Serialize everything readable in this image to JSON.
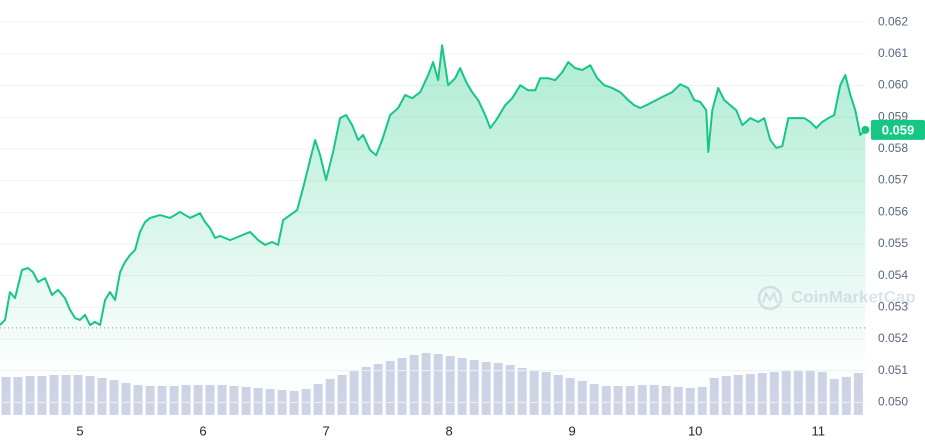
{
  "chart_data": [
    {
      "type": "line",
      "color": "#16c784",
      "grid": true,
      "watermark": "CoinMarketCap",
      "baseline": 0.05235,
      "last_value_label": "0.059",
      "xlim": [
        4.35,
        11.38
      ],
      "xticks": [
        5,
        6,
        7,
        8,
        9,
        10,
        11
      ],
      "ylim": [
        0.0496,
        0.0627
      ],
      "yticks": [
        {
          "value": 0.05,
          "label": "0.050"
        },
        0.051,
        0.052,
        0.053,
        0.054,
        0.055,
        0.056,
        0.057,
        0.058,
        0.059,
        {
          "value": 0.06,
          "label": "0.060"
        },
        0.061,
        0.062
      ],
      "x": [
        4.35,
        4.391,
        4.431,
        4.472,
        4.529,
        4.578,
        4.618,
        4.659,
        4.716,
        4.773,
        4.822,
        4.878,
        4.919,
        4.96,
        5.0,
        5.041,
        5.082,
        5.122,
        5.163,
        5.204,
        5.244,
        5.285,
        5.326,
        5.366,
        5.407,
        5.448,
        5.488,
        5.529,
        5.57,
        5.651,
        5.732,
        5.813,
        5.895,
        5.976,
        6.017,
        6.057,
        6.098,
        6.139,
        6.22,
        6.301,
        6.383,
        6.448,
        6.504,
        6.561,
        6.61,
        6.651,
        6.708,
        6.765,
        6.813,
        6.87,
        6.911,
        6.952,
        7.0,
        7.057,
        7.114,
        7.163,
        7.212,
        7.261,
        7.301,
        7.358,
        7.407,
        7.456,
        7.521,
        7.586,
        7.643,
        7.7,
        7.765,
        7.83,
        7.87,
        7.911,
        7.943,
        7.992,
        8.049,
        8.09,
        8.139,
        8.187,
        8.236,
        8.293,
        8.334,
        8.383,
        8.456,
        8.513,
        8.578,
        8.643,
        8.7,
        8.74,
        8.805,
        8.862,
        8.919,
        8.968,
        9.025,
        9.082,
        9.147,
        9.204,
        9.261,
        9.326,
        9.391,
        9.456,
        9.504,
        9.553,
        9.618,
        9.683,
        9.748,
        9.813,
        9.878,
        9.943,
        9.992,
        10.041,
        10.09,
        10.106,
        10.139,
        10.187,
        10.236,
        10.285,
        10.334,
        10.383,
        10.448,
        10.513,
        10.561,
        10.61,
        10.659,
        10.708,
        10.757,
        10.822,
        10.887,
        10.935,
        10.984,
        11.033,
        11.081,
        11.13,
        11.179,
        11.22,
        11.261,
        11.301,
        11.342,
        11.383
      ],
      "values": [
        0.05244,
        0.0526,
        0.05348,
        0.05329,
        0.05418,
        0.05424,
        0.05411,
        0.0538,
        0.05392,
        0.05339,
        0.05355,
        0.05329,
        0.05292,
        0.05266,
        0.0526,
        0.05276,
        0.05244,
        0.05254,
        0.05244,
        0.05323,
        0.05348,
        0.05323,
        0.05411,
        0.05443,
        0.05465,
        0.05481,
        0.05538,
        0.05569,
        0.05582,
        0.05591,
        0.05582,
        0.05601,
        0.05582,
        0.05597,
        0.05569,
        0.0555,
        0.05519,
        0.05525,
        0.05512,
        0.05525,
        0.05538,
        0.05512,
        0.05497,
        0.05506,
        0.05497,
        0.05575,
        0.05591,
        0.05607,
        0.05676,
        0.05765,
        0.05828,
        0.0578,
        0.05702,
        0.0579,
        0.05897,
        0.05907,
        0.05875,
        0.05828,
        0.05844,
        0.05796,
        0.0578,
        0.05828,
        0.05907,
        0.05929,
        0.0597,
        0.0596,
        0.05979,
        0.06033,
        0.06074,
        0.06017,
        0.06127,
        0.06001,
        0.06023,
        0.06055,
        0.06011,
        0.05979,
        0.05954,
        0.05907,
        0.05866,
        0.05891,
        0.05938,
        0.0596,
        0.06001,
        0.05985,
        0.05985,
        0.06023,
        0.06023,
        0.06017,
        0.06042,
        0.06074,
        0.06055,
        0.06049,
        0.06064,
        0.06023,
        0.06001,
        0.05992,
        0.05979,
        0.05954,
        0.05938,
        0.05929,
        0.05941,
        0.05954,
        0.05967,
        0.05979,
        0.06004,
        0.05992,
        0.05954,
        0.05948,
        0.05922,
        0.0579,
        0.05922,
        0.05992,
        0.05954,
        0.05938,
        0.05922,
        0.05875,
        0.05897,
        0.05885,
        0.05897,
        0.05828,
        0.05803,
        0.05809,
        0.05897,
        0.05897,
        0.05897,
        0.05885,
        0.05866,
        0.05885,
        0.05897,
        0.05907,
        0.06001,
        0.06033,
        0.0597,
        0.05922,
        0.05844,
        0.0586
      ]
    },
    {
      "type": "bar",
      "color": "#cfd3e6",
      "xlim": [
        4.35,
        11.38
      ],
      "ylim": [
        0,
        100
      ],
      "x": [
        4.399,
        4.496,
        4.594,
        4.691,
        4.789,
        4.887,
        4.984,
        5.082,
        5.179,
        5.277,
        5.374,
        5.472,
        5.57,
        5.667,
        5.765,
        5.862,
        5.96,
        6.057,
        6.155,
        6.252,
        6.35,
        6.448,
        6.545,
        6.643,
        6.74,
        6.838,
        6.935,
        7.033,
        7.13,
        7.228,
        7.326,
        7.423,
        7.521,
        7.618,
        7.716,
        7.813,
        7.911,
        8.009,
        8.106,
        8.204,
        8.301,
        8.399,
        8.496,
        8.594,
        8.691,
        8.789,
        8.887,
        8.984,
        9.082,
        9.179,
        9.277,
        9.374,
        9.472,
        9.57,
        9.667,
        9.765,
        9.862,
        9.96,
        10.057,
        10.155,
        10.252,
        10.35,
        10.448,
        10.545,
        10.643,
        10.74,
        10.838,
        10.935,
        11.033,
        11.13,
        11.228,
        11.326
      ],
      "values": [
        38,
        38,
        39,
        39,
        40,
        40,
        40,
        39,
        37,
        35,
        32,
        30,
        29,
        29,
        29,
        30,
        30,
        30,
        30,
        29,
        28,
        27,
        26,
        25,
        24,
        26,
        31,
        36,
        40,
        44,
        48,
        51,
        54,
        57,
        60,
        62,
        61,
        59,
        57,
        55,
        53,
        52,
        50,
        47,
        45,
        43,
        40,
        37,
        34,
        31,
        29,
        29,
        29,
        30,
        30,
        29,
        28,
        27,
        28,
        37,
        39,
        40,
        41,
        42,
        43,
        44,
        45,
        45,
        43,
        36,
        38,
        42
      ]
    }
  ]
}
